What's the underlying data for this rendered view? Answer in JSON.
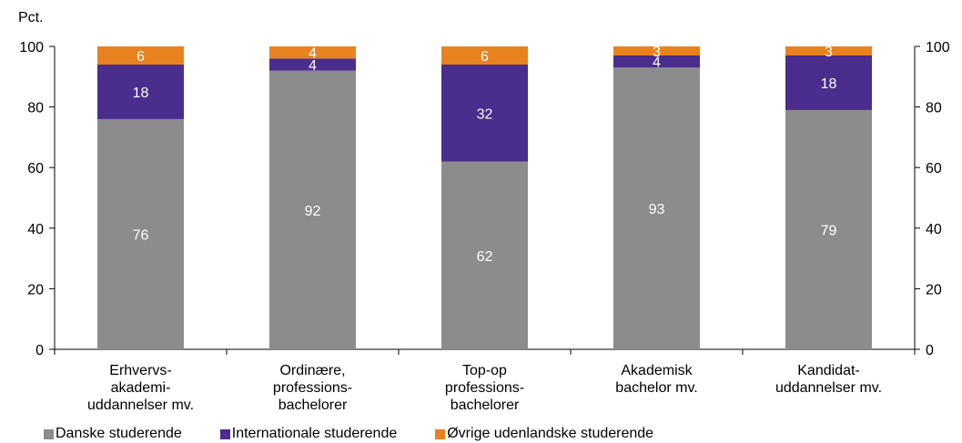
{
  "chart_data": {
    "type": "bar",
    "stacked": true,
    "ylabel_left": "Pct.",
    "ylim": [
      0,
      100
    ],
    "yticks": [
      0,
      20,
      40,
      60,
      80,
      100
    ],
    "secondary_axis": true,
    "grid": false,
    "categories": [
      [
        "Erhvervs-",
        "akademi-",
        "uddannelser mv."
      ],
      [
        "Ordinære,",
        "professions-",
        "bachelorer"
      ],
      [
        "Top-op",
        "professions-",
        "bachelorer"
      ],
      [
        "Akademisk",
        "bachelor mv."
      ],
      [
        "Kandidat-",
        "uddannelser mv."
      ]
    ],
    "series": [
      {
        "name": "Danske studerende",
        "color": "#8c8c8c",
        "label_color": "#ffffff",
        "values": [
          76,
          92,
          62,
          93,
          79
        ]
      },
      {
        "name": "Internationale studerende",
        "color": "#4a2d8c",
        "label_color": "#ffffff",
        "values": [
          18,
          4,
          32,
          4,
          18
        ]
      },
      {
        "name": "Øvrige udenlandske studerende",
        "color": "#e8821e",
        "label_color": "#ffffff",
        "values": [
          6,
          4,
          6,
          3,
          3
        ]
      }
    ],
    "legend_position": "bottom-left"
  }
}
